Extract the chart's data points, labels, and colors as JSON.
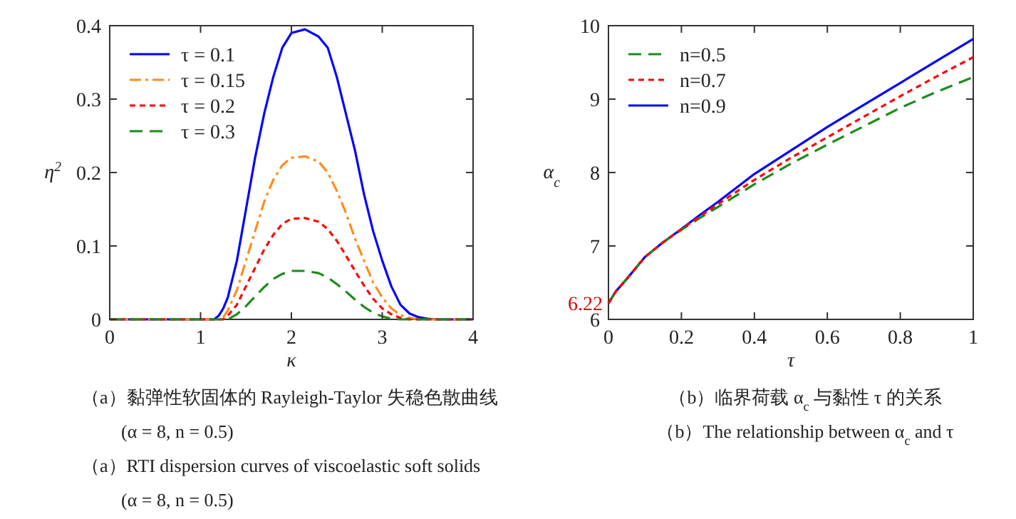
{
  "chart_data": [
    {
      "type": "line",
      "xlabel": "κ",
      "ylabel": "η$^{2}$",
      "xlim": [
        0,
        4
      ],
      "ylim": [
        0,
        0.4
      ],
      "xticks": [
        0,
        1,
        2,
        3,
        4
      ],
      "yticks": [
        0,
        0.1,
        0.2,
        0.3,
        0.4
      ],
      "legend": "top left",
      "grid": false,
      "x": [
        0,
        1.0,
        1.15,
        1.2,
        1.25,
        1.3,
        1.4,
        1.5,
        1.6,
        1.7,
        1.8,
        1.9,
        2.0,
        2.15,
        2.3,
        2.4,
        2.5,
        2.6,
        2.7,
        2.8,
        2.9,
        3.0,
        3.1,
        3.2,
        3.3,
        3.4,
        3.5,
        3.6,
        4
      ],
      "series": [
        {
          "name": "τ = 0.1",
          "color": "#0000ff",
          "line_style": "solid",
          "values": [
            0,
            0,
            0,
            0.005,
            0.015,
            0.03,
            0.08,
            0.15,
            0.22,
            0.28,
            0.33,
            0.37,
            0.39,
            0.395,
            0.385,
            0.37,
            0.33,
            0.28,
            0.23,
            0.17,
            0.12,
            0.08,
            0.045,
            0.02,
            0.008,
            0.003,
            0.001,
            0,
            0
          ]
        },
        {
          "name": "τ = 0.15",
          "color": "#ff8c1a",
          "line_style": "dashdot",
          "values": [
            0,
            0,
            0,
            0,
            0.003,
            0.012,
            0.04,
            0.08,
            0.12,
            0.16,
            0.19,
            0.21,
            0.22,
            0.222,
            0.215,
            0.2,
            0.175,
            0.145,
            0.11,
            0.08,
            0.05,
            0.03,
            0.015,
            0.006,
            0.002,
            0,
            0,
            0,
            0
          ]
        },
        {
          "name": "τ = 0.2",
          "color": "#ff0000",
          "line_style": "dotted",
          "values": [
            0,
            0,
            0,
            0,
            0,
            0.005,
            0.02,
            0.045,
            0.07,
            0.095,
            0.115,
            0.13,
            0.137,
            0.138,
            0.133,
            0.123,
            0.107,
            0.087,
            0.066,
            0.046,
            0.028,
            0.015,
            0.007,
            0.002,
            0,
            0,
            0,
            0,
            0
          ]
        },
        {
          "name": "τ = 0.3",
          "color": "#1a8c1a",
          "line_style": "dashed",
          "values": [
            0,
            0,
            0,
            0,
            0,
            0,
            0.007,
            0.018,
            0.031,
            0.044,
            0.055,
            0.062,
            0.066,
            0.066,
            0.063,
            0.057,
            0.048,
            0.038,
            0.027,
            0.017,
            0.009,
            0.004,
            0.001,
            0,
            0,
            0,
            0,
            0,
            0
          ]
        }
      ],
      "annotations": [
        "（a）黏弹性软固体的 Rayleigh-Taylor 失稳色散曲线",
        "(α = 8, n = 0.5)",
        "（a）RTI dispersion curves of viscoelastic soft solids",
        "(α = 8, n = 0.5)"
      ]
    },
    {
      "type": "line",
      "xlabel": "τ",
      "ylabel": "α$_{c}$",
      "xlim": [
        0,
        1
      ],
      "ylim": [
        6,
        10
      ],
      "xticks": [
        0,
        0.2,
        0.4,
        0.6,
        0.8,
        1
      ],
      "yticks": [
        6,
        7,
        8,
        9,
        10
      ],
      "legend": "top left",
      "grid": false,
      "x": [
        0,
        0.02,
        0.05,
        0.1,
        0.15,
        0.2,
        0.25,
        0.3,
        0.4,
        0.5,
        0.6,
        0.7,
        0.8,
        0.9,
        1
      ],
      "series": [
        {
          "name": "n=0.5",
          "color": "#1a8c1a",
          "line_style": "dashed",
          "values": [
            6.22,
            6.38,
            6.55,
            6.85,
            7.05,
            7.22,
            7.38,
            7.53,
            7.84,
            8.12,
            8.38,
            8.63,
            8.88,
            9.1,
            9.3
          ]
        },
        {
          "name": "n=0.7",
          "color": "#ff0000",
          "line_style": "dotted",
          "values": [
            6.22,
            6.38,
            6.55,
            6.85,
            7.05,
            7.23,
            7.4,
            7.57,
            7.9,
            8.2,
            8.48,
            8.76,
            9.04,
            9.31,
            9.57
          ]
        },
        {
          "name": "n=0.9",
          "color": "#0000ff",
          "line_style": "solid",
          "values": [
            6.22,
            6.38,
            6.55,
            6.85,
            7.05,
            7.23,
            7.42,
            7.6,
            7.98,
            8.3,
            8.62,
            8.92,
            9.22,
            9.52,
            9.82
          ]
        }
      ],
      "annotations": [
        {
          "text": "6.22",
          "x": 0,
          "y": 6.22
        },
        "（b）临界荷载 α$_{c}$ 与黏性 τ 的关系",
        "（b）The relationship between α$_{c}$ and τ"
      ]
    }
  ]
}
